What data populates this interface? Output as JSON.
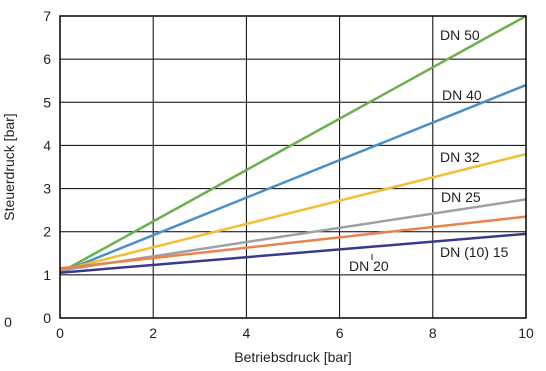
{
  "chart_data": {
    "type": "line",
    "title": "",
    "xlabel": "Betriebsdruck [bar]",
    "ylabel": "Steuerdruck [bar]",
    "xlim": [
      0,
      10
    ],
    "ylim": [
      0,
      7
    ],
    "xticks": [
      "0",
      "2",
      "4",
      "6",
      "8",
      "10"
    ],
    "yticks": [
      "0",
      "1",
      "2",
      "3",
      "4",
      "5",
      "6",
      "7"
    ],
    "grid": true,
    "stray_label": "0",
    "series": [
      {
        "name": "DN 50",
        "color": "#6ab04c",
        "x": [
          0,
          10
        ],
        "y": [
          1.05,
          7.0
        ]
      },
      {
        "name": "DN 40",
        "color": "#4a90c8",
        "x": [
          0,
          10
        ],
        "y": [
          1.05,
          5.4
        ]
      },
      {
        "name": "DN 32",
        "color": "#f0c030",
        "x": [
          0,
          10
        ],
        "y": [
          1.1,
          3.8
        ]
      },
      {
        "name": "DN 25",
        "color": "#a0a0a0",
        "x": [
          0,
          10
        ],
        "y": [
          1.1,
          2.75
        ]
      },
      {
        "name": "DN 20",
        "color": "#e8844a",
        "x": [
          0,
          10
        ],
        "y": [
          1.15,
          2.35
        ]
      },
      {
        "name": "DN (10) 15",
        "color": "#3a3a8c",
        "x": [
          0,
          10
        ],
        "y": [
          1.05,
          1.95
        ]
      }
    ]
  }
}
